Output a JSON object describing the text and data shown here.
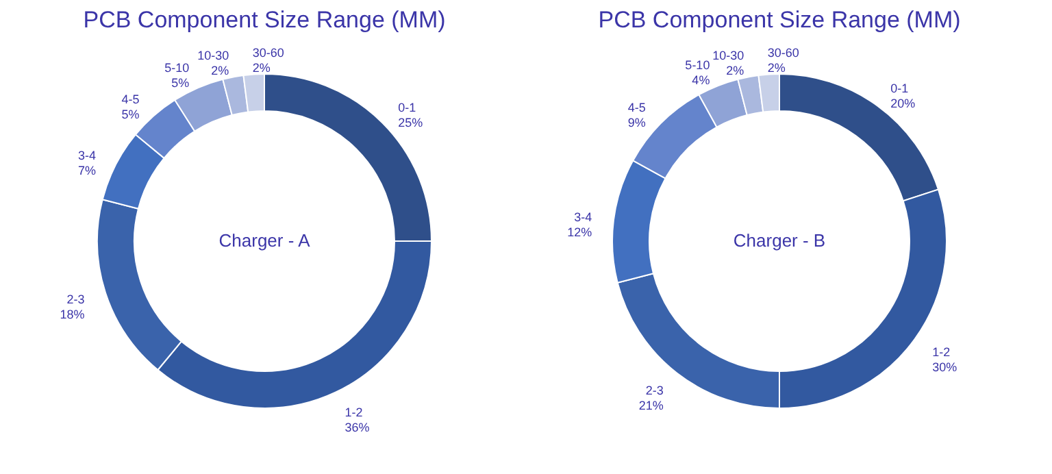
{
  "chart_data": [
    {
      "type": "donut",
      "title": "PCB Component Size Range (MM)",
      "categories": [
        "0-1",
        "1-2",
        "2-3",
        "3-4",
        "4-5",
        "5-10",
        "10-30",
        "30-60"
      ],
      "values": [
        25,
        36,
        18,
        7,
        5,
        5,
        2,
        2
      ],
      "colors": [
        "#2f4f8a",
        "#3259a0",
        "#3a63ab",
        "#4270c0",
        "#6484cc",
        "#8fa3d6",
        "#aab8de",
        "#c7d0e8"
      ],
      "value_labels": [
        "25%",
        "36%",
        "18%",
        "7%",
        "5%",
        "5%",
        "2%",
        "2%"
      ],
      "annotations": [
        "Charger -  A"
      ]
    },
    {
      "type": "donut",
      "title": "PCB Component Size Range (MM)",
      "categories": [
        "0-1",
        "1-2",
        "2-3",
        "3-4",
        "4-5",
        "5-10",
        "10-30",
        "30-60"
      ],
      "values": [
        20,
        30,
        21,
        12,
        9,
        4,
        2,
        2
      ],
      "colors": [
        "#2f4f8a",
        "#3259a0",
        "#3a63ab",
        "#4270c0",
        "#6484cc",
        "#8fa3d6",
        "#aab8de",
        "#c7d0e8"
      ],
      "value_labels": [
        "20%",
        "30%",
        "21%",
        "12%",
        "9%",
        "4%",
        "2%",
        "2%"
      ],
      "annotations": [
        "Charger -  B"
      ]
    }
  ]
}
